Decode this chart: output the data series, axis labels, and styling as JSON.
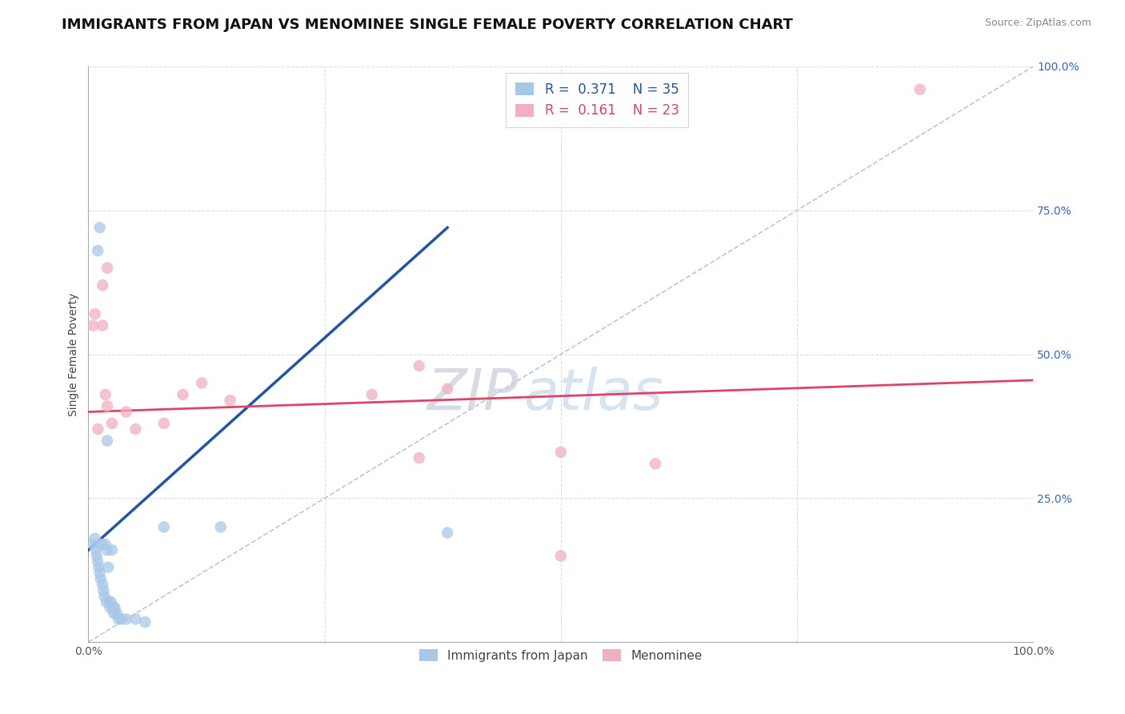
{
  "title": "IMMIGRANTS FROM JAPAN VS MENOMINEE SINGLE FEMALE POVERTY CORRELATION CHART",
  "source": "Source: ZipAtlas.com",
  "ylabel": "Single Female Poverty",
  "xlim": [
    0.0,
    1.0
  ],
  "ylim": [
    0.0,
    1.0
  ],
  "blue_label": "Immigrants from Japan",
  "pink_label": "Menominee",
  "blue_R": "0.371",
  "blue_N": "35",
  "pink_R": "0.161",
  "pink_N": "23",
  "blue_color": "#a8c8e8",
  "pink_color": "#f0b0c0",
  "blue_line_color": "#2255aa",
  "pink_line_color": "#dd4466",
  "diagonal_color": "#b8c8dc",
  "grid_color": "#d8dde8",
  "tick_color_y": "#3366cc",
  "tick_color_x": "#555555",
  "title_fontsize": 13,
  "label_fontsize": 10,
  "tick_fontsize": 10,
  "source_fontsize": 9,
  "blue_scatter_x": [
    0.005,
    0.007,
    0.008,
    0.009,
    0.01,
    0.011,
    0.012,
    0.013,
    0.014,
    0.015,
    0.016,
    0.017,
    0.018,
    0.019,
    0.02,
    0.021,
    0.022,
    0.023,
    0.024,
    0.025,
    0.026,
    0.027,
    0.028,
    0.03,
    0.032,
    0.035,
    0.04,
    0.05,
    0.06,
    0.08,
    0.01,
    0.012,
    0.38,
    0.02,
    0.14
  ],
  "blue_scatter_y": [
    0.17,
    0.18,
    0.16,
    0.15,
    0.14,
    0.13,
    0.12,
    0.11,
    0.17,
    0.1,
    0.09,
    0.08,
    0.17,
    0.07,
    0.16,
    0.13,
    0.07,
    0.06,
    0.07,
    0.16,
    0.06,
    0.05,
    0.06,
    0.05,
    0.04,
    0.04,
    0.04,
    0.04,
    0.035,
    0.2,
    0.68,
    0.72,
    0.19,
    0.35,
    0.2
  ],
  "pink_scatter_x": [
    0.005,
    0.007,
    0.01,
    0.015,
    0.018,
    0.02,
    0.025,
    0.04,
    0.05,
    0.08,
    0.1,
    0.12,
    0.15,
    0.3,
    0.35,
    0.38,
    0.5,
    0.6,
    0.015,
    0.02,
    0.88,
    0.35,
    0.5
  ],
  "pink_scatter_y": [
    0.55,
    0.57,
    0.37,
    0.55,
    0.43,
    0.41,
    0.38,
    0.4,
    0.37,
    0.38,
    0.43,
    0.45,
    0.42,
    0.43,
    0.32,
    0.44,
    0.15,
    0.31,
    0.62,
    0.65,
    0.96,
    0.48,
    0.33
  ],
  "blue_trend_x": [
    0.0,
    0.38
  ],
  "blue_trend_y": [
    0.16,
    0.72
  ],
  "pink_trend_x": [
    0.0,
    1.0
  ],
  "pink_trend_y": [
    0.4,
    0.455
  ]
}
